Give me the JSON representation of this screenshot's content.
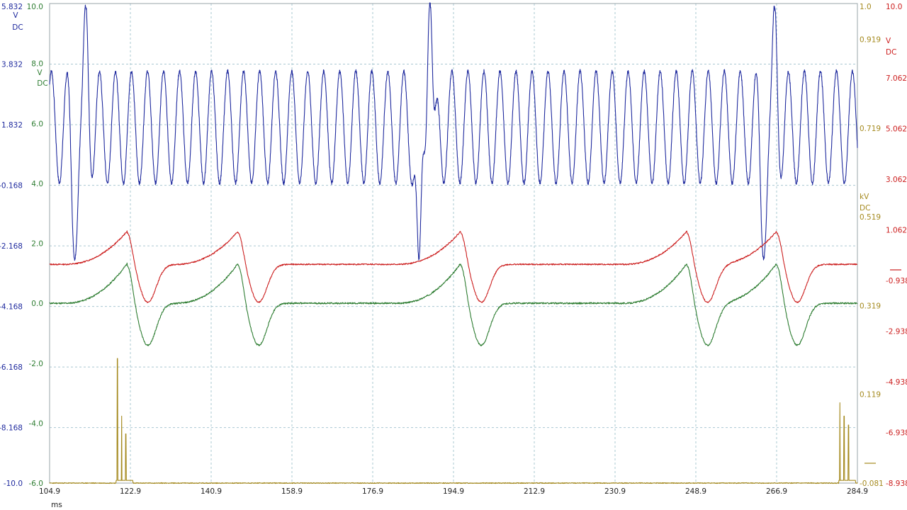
{
  "chart_data": {
    "type": "line",
    "x_axis": {
      "unit": "ms",
      "range": [
        104.9,
        284.9
      ],
      "ticks": [
        "104.9",
        "122.9",
        "140.9",
        "158.9",
        "176.9",
        "194.9",
        "212.9",
        "230.9",
        "248.9",
        "266.9",
        "284.9"
      ]
    },
    "axes": [
      {
        "side": "left-outer",
        "color": "#1f2a9e",
        "unit": "V",
        "coupling": "DC",
        "range": [
          -10.0,
          5.832
        ],
        "ticks": [
          "5.832",
          "3.832",
          "1.832",
          "-0.168",
          "-2.168",
          "-4.168",
          "-6.168",
          "-8.168",
          "-10.0"
        ]
      },
      {
        "side": "left-inner",
        "color": "#2e7d32",
        "unit": "V",
        "coupling": "DC",
        "range": [
          -6.0,
          10.0
        ],
        "ticks": [
          "10.0",
          "8.0",
          "6.0",
          "4.0",
          "2.0",
          "0.0",
          "-2.0",
          "-4.0",
          "-6.0"
        ]
      },
      {
        "side": "right-inner",
        "color": "#a58a1f",
        "unit": "kV",
        "coupling": "DC",
        "range": [
          -0.081,
          1.0
        ],
        "ticks": [
          "1.0",
          "0.919",
          "0.719",
          "0.519",
          "0.319",
          "0.119",
          "-0.081"
        ]
      },
      {
        "side": "right-outer",
        "color": "#cc1f1f",
        "unit": "V",
        "coupling": "DC",
        "range": [
          -8.938,
          10.0
        ],
        "ticks": [
          "10.0",
          "7.062",
          "5.062",
          "3.062",
          "1.062",
          "-0.938",
          "-2.938",
          "-4.938",
          "-6.938",
          "-8.938"
        ]
      }
    ],
    "series": [
      {
        "color": "#1f2a9e",
        "axis": 0,
        "shape": "oscillation",
        "period_ms": 3.57,
        "high_v": 3.6,
        "low_v": -0.1,
        "spikes": [
          {
            "t": 113.0,
            "peak_v": 5.7,
            "trough_v": -2.6
          },
          {
            "t": 189.7,
            "peak_v": 5.8,
            "trough_v": -2.6
          },
          {
            "t": 266.5,
            "peak_v": 5.7,
            "trough_v": -2.6
          }
        ]
      },
      {
        "color": "#cc1f1f",
        "axis": 3,
        "shape": "pulse",
        "baseline_v": -0.3,
        "peak_v": 1.08,
        "trough_v": -1.8,
        "events_ms": [
          122.2,
          146.9,
          196.5,
          246.9,
          266.9
        ]
      },
      {
        "color": "#2e7d32",
        "axis": 1,
        "shape": "pulse",
        "baseline_v": 0.0,
        "peak_v": 1.4,
        "trough_v": -1.4,
        "events_ms": [
          122.2,
          146.9,
          196.5,
          246.9,
          266.9
        ]
      },
      {
        "color": "#a58a1f",
        "axis": 2,
        "shape": "spikes",
        "baseline_kv": -0.081,
        "bursts": [
          {
            "t": 120.0,
            "peaks_kv": [
              0.2,
              0.07,
              0.03
            ]
          },
          {
            "t": 281.0,
            "peaks_kv": [
              0.1,
              0.07,
              0.05
            ]
          }
        ]
      }
    ]
  }
}
